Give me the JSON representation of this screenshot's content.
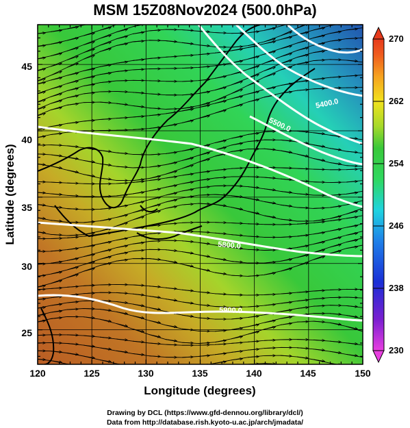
{
  "figure": {
    "title": "MSM 15Z08Nov2024 (500.0hPa)",
    "xlabel": "Longitude (degrees)",
    "ylabel": "Latitude  (degrees)",
    "credit_line1": "Drawing by DCL (https://www.gfd-dennou.org/library/dcl/)",
    "credit_line2": "Data from http://database.rish.kyoto-u.ac.jp/arch/jmadata/"
  },
  "map": {
    "lon_range": [
      120,
      150
    ],
    "lat_range": [
      22.4,
      48
    ],
    "lon_ticks": [
      "120",
      "125",
      "130",
      "135",
      "140",
      "145",
      "150"
    ],
    "lat_ticks": [
      "25",
      "30",
      "35",
      "40",
      "45"
    ],
    "field": "temperature (K)",
    "overlay": "streamlines and geopotential height contours (white)",
    "contour_labels": [
      "5400.0",
      "5500.0",
      "5800.0",
      "5900.0"
    ]
  },
  "colorbar": {
    "min": 230,
    "max": 270,
    "tick_labels": [
      "270",
      "262",
      "254",
      "246",
      "238",
      "230"
    ],
    "colors": [
      "#e83fe0",
      "#7a1fd0",
      "#1a2fd6",
      "#1f7fe8",
      "#1fd3e0",
      "#2fd860",
      "#39c83a",
      "#a6d92a",
      "#f1e21d",
      "#f6a21f",
      "#ef5b1e",
      "#e63a1c"
    ]
  }
}
